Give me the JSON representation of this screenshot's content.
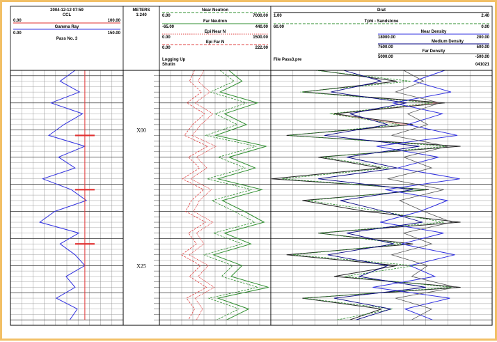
{
  "header": {
    "track1": {
      "timestamp": "2004-12-12 07:59",
      "ccl": {
        "label": "CCL",
        "min": "0.00",
        "max": "100.00",
        "color": "#e03030"
      },
      "gamma_ray": {
        "label": "Gamma Ray",
        "min": "0.00",
        "max": "150.00",
        "color": "#3030e0"
      },
      "pass": "Pass No. 3"
    },
    "depth_track": {
      "unit": "METERS",
      "scale": "1:240"
    },
    "track2": {
      "near_neutron": {
        "label": "Near Neutron",
        "min": "0.00",
        "max": "7000.00",
        "color": "#2f8f2f"
      },
      "far_neutron": {
        "label": "Far Neutron",
        "min": "-65.00",
        "max": "440.00",
        "color": "#2f8f2f"
      },
      "epi_near": {
        "label": "Epi Near N",
        "min": "0.00",
        "max": "1500.00",
        "color": "#e04040"
      },
      "epi_far": {
        "label": "Epi Far N",
        "min": "0.00",
        "max": "222.00",
        "color": "#e04040"
      },
      "logging": "Logging Up",
      "status": "Shutin"
    },
    "track3": {
      "drat": {
        "label": "Drat",
        "min": "1.00",
        "max": "2.40"
      },
      "tphi": {
        "label": "Tphi - Sandstone",
        "min": "60.00",
        "max": "0.00",
        "color": "#2f8f2f"
      },
      "near_density": {
        "label": "Near Density",
        "min": "18000.00",
        "max": "200.00"
      },
      "medium_density": {
        "label": "Medium Density",
        "min": "7500.00",
        "max": "500.00"
      },
      "far_density": {
        "label": "Far Density",
        "min": "5000.00",
        "max": "-500.00"
      },
      "file": "File Pass3.pre",
      "code": "041021"
    }
  },
  "depth_labels": [
    {
      "label": "X00",
      "depth": 0
    },
    {
      "label": "X25",
      "depth": 25
    }
  ],
  "chart_data": {
    "type": "line",
    "title": "",
    "depth_unit": "m",
    "depth_range": [
      -11,
      36
    ],
    "tracks": [
      {
        "name": "track1",
        "curves": [
          {
            "name": "Gamma Ray",
            "scale": [
              0,
              150
            ],
            "color": "#3030e0",
            "depth": [
              -11,
              -9,
              -7,
              -5,
              -3,
              -1,
              1,
              3,
              5,
              7,
              9,
              11,
              13,
              15,
              17,
              19,
              21,
              23,
              25,
              27,
              29,
              31,
              33,
              35
            ],
            "values": [
              86,
              66,
              92,
              54,
              96,
              71,
              51,
              99,
              64,
              86,
              43,
              81,
              101,
              59,
              39,
              91,
              66,
              86,
              99,
              74,
              86,
              61,
              89,
              79
            ]
          },
          {
            "name": "CCL",
            "scale": [
              0,
              100
            ],
            "color": "#e03030",
            "depth": [
              -11,
              1,
              11,
              21,
              35
            ],
            "values": [
              66,
              66,
              66,
              66,
              66
            ],
            "collars": [
              1,
              11,
              21
            ]
          }
        ]
      },
      {
        "name": "track2",
        "curves": [
          {
            "name": "Near Neutron",
            "scale": [
              0,
              7000
            ],
            "color": "#2f8f2f",
            "depth": [
              -11,
              -9,
              -7,
              -5,
              -3,
              -1,
              1,
              3,
              5,
              7,
              9,
              11,
              13,
              15,
              17,
              19,
              21,
              23,
              25,
              27,
              29,
              31,
              33,
              35
            ],
            "values": [
              3800,
              4700,
              3200,
              5500,
              3500,
              4900,
              2900,
              6100,
              3700,
              5400,
              3000,
              5800,
              3300,
              4700,
              6000,
              3400,
              5200,
              2800,
              4600,
              3900,
              6200,
              3100,
              5000,
              3600
            ]
          },
          {
            "name": "Far Neutron",
            "scale": [
              -65,
              440
            ],
            "color": "#2f8f2f",
            "depth": [
              -11,
              -9,
              -7,
              -5,
              -3,
              -1,
              1,
              3,
              5,
              7,
              9,
              11,
              13,
              15,
              17,
              19,
              21,
              23,
              25,
              27,
              29,
              31,
              33,
              35
            ],
            "values": [
              250,
              310,
              210,
              380,
              230,
              330,
              190,
              420,
              250,
              370,
              200,
              400,
              220,
              320,
              410,
              230,
              350,
              180,
              310,
              260,
              430,
              200,
              340,
              240
            ]
          },
          {
            "name": "Epi Near N",
            "scale": [
              0,
              1500
            ],
            "color": "#e04040",
            "depth": [
              -11,
              -9,
              -7,
              -5,
              -3,
              -1,
              1,
              3,
              5,
              7,
              9,
              11,
              13,
              15,
              17,
              19,
              21,
              23,
              25,
              27,
              29,
              31,
              33,
              35
            ],
            "values": [
              600,
              520,
              680,
              480,
              720,
              560,
              440,
              760,
              500,
              640,
              420,
              700,
              540,
              460,
              720,
              500,
              600,
              400,
              660,
              520,
              740,
              480,
              580,
              500
            ]
          },
          {
            "name": "Epi Far N",
            "scale": [
              0,
              222
            ],
            "color": "#e04040",
            "depth": [
              -11,
              -9,
              -7,
              -5,
              -3,
              -1,
              1,
              3,
              5,
              7,
              9,
              11,
              13,
              15,
              17,
              19,
              21,
              23,
              25,
              27,
              29,
              31,
              33,
              35
            ],
            "values": [
              70,
              60,
              84,
              55,
              90,
              66,
              50,
              96,
              58,
              80,
              46,
              88,
              64,
              52,
              92,
              58,
              74,
              44,
              82,
              60,
              94,
              54,
              70,
              58
            ]
          }
        ]
      },
      {
        "name": "track3",
        "curves": [
          {
            "name": "Drat",
            "scale": [
              1.0,
              2.4
            ],
            "color": "#222222",
            "depth": [
              -11,
              -9,
              -7,
              -5,
              -3,
              -1,
              1,
              3,
              5,
              7,
              9,
              11,
              13,
              15,
              17,
              19,
              21,
              23,
              25,
              27,
              29,
              31,
              33,
              35
            ],
            "values": [
              1.3,
              1.8,
              1.2,
              2.1,
              1.4,
              1.9,
              1.1,
              2.2,
              1.3,
              1.7,
              1.0,
              2.0,
              1.2,
              1.6,
              2.2,
              1.3,
              1.9,
              1.1,
              1.8,
              1.4,
              2.2,
              1.2,
              1.7,
              1.5
            ]
          },
          {
            "name": "Tphi - Sandstone",
            "scale": [
              60,
              0
            ],
            "color": "#2f8f2f",
            "depth": [
              -11,
              -9,
              -7,
              -5,
              -3,
              -1,
              1,
              3,
              5,
              7,
              9,
              11,
              13,
              15,
              17,
              19,
              21,
              23,
              25,
              27,
              29,
              31,
              33,
              35
            ],
            "values": [
              48,
              22,
              52,
              16,
              44,
              25,
              55,
              12,
              46,
              28,
              57,
              18,
              50,
              30,
              13,
              47,
              24,
              54,
              21,
              40,
              11,
              51,
              27,
              42
            ]
          },
          {
            "name": "Near Density",
            "scale": [
              18000,
              200
            ],
            "color": "#3030e0",
            "depth": [
              -11,
              -9,
              -7,
              -5,
              -3,
              -1,
              1,
              3,
              5,
              7,
              9,
              11,
              13,
              15,
              17,
              19,
              21,
              23,
              25,
              27,
              29,
              31,
              33,
              35
            ],
            "values": [
              4000,
              6500,
              3500,
              8200,
              4200,
              7000,
              3000,
              9500,
              4500,
              7800,
              2800,
              8800,
              3800,
              6000,
              9200,
              4100,
              7500,
              3200,
              6800,
              4800,
              9800,
              3600,
              7200,
              5000
            ]
          },
          {
            "name": "Medium Density",
            "scale": [
              7500,
              500
            ],
            "color": "#000080",
            "depth": [
              -11,
              -9,
              -7,
              -5,
              -3,
              -1,
              1,
              3,
              5,
              7,
              9,
              11,
              13,
              15,
              17,
              19,
              21,
              23,
              25,
              27,
              29,
              31,
              33,
              35
            ],
            "values": [
              5200,
              4000,
              5600,
              3200,
              5000,
              3800,
              5800,
              2800,
              5100,
              3500,
              6000,
              3000,
              5300,
              3900,
              2700,
              5100,
              3600,
              5700,
              3800,
              4700,
              2600,
              5500,
              3700,
              4800
            ]
          },
          {
            "name": "Far Density",
            "scale": [
              5000,
              -500
            ],
            "color": "#555555",
            "depth": [
              -11,
              -9,
              -7,
              -5,
              -3,
              -1,
              1,
              3,
              5,
              7,
              9,
              11,
              13,
              15,
              17,
              19,
              21,
              23,
              25,
              27,
              29,
              31,
              33,
              35
            ],
            "values": [
              1700,
              1200,
              1900,
              800,
              1600,
              1100,
              2000,
              600,
              1700,
              1000,
              2100,
              700,
              1800,
              1200,
              500,
              1700,
              1000,
              2000,
              1100,
              1500,
              400,
              1900,
              1000,
              1500
            ]
          }
        ]
      }
    ]
  }
}
